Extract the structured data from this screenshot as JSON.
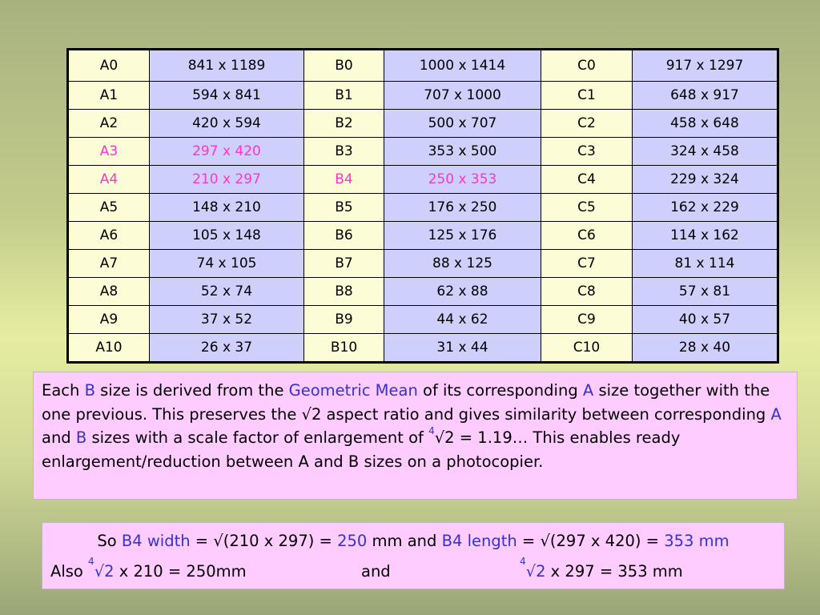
{
  "table": {
    "rows": [
      [
        "A0",
        "841 x 1189",
        "B0",
        "1000 x 1414",
        "C0",
        "917 x 1297"
      ],
      [
        "A1",
        "594 x 841",
        "B1",
        "707 x 1000",
        "C1",
        "648 x 917"
      ],
      [
        "A2",
        "420 x 594",
        "B2",
        "500 x 707",
        "C2",
        "458 x 648"
      ],
      [
        "A3",
        "297 x 420",
        "B3",
        "353 x 500",
        "C3",
        "324 x 458"
      ],
      [
        "A4",
        "210 x 297",
        "B4",
        "250 x 353",
        "C4",
        "229 x 324"
      ],
      [
        "A5",
        "148 x 210",
        "B5",
        "176 x 250",
        "C5",
        "162 x 229"
      ],
      [
        "A6",
        "105 x 148",
        "B6",
        "125 x 176",
        "C6",
        "114 x 162"
      ],
      [
        "A7",
        "74 x 105",
        "B7",
        "88 x 125",
        "C7",
        "81 x 114"
      ],
      [
        "A8",
        "52 x 74",
        "B8",
        "62 x 88",
        "C8",
        "57 x 81"
      ],
      [
        "A9",
        "37 x 52",
        "B9",
        "44 x 62",
        "C9",
        "40 x 57"
      ],
      [
        "A10",
        "26 x 37",
        "B10",
        "31 x 44",
        "C10",
        "28 x 40"
      ]
    ],
    "highlighted_cells": [
      [
        3,
        0
      ],
      [
        3,
        1
      ],
      [
        4,
        0
      ],
      [
        4,
        1
      ],
      [
        4,
        2
      ],
      [
        4,
        3
      ]
    ],
    "highlight_color": "#ff33cc",
    "label_bg": "#fcfcd6",
    "value_bg": "#cfcffc"
  },
  "explanation": {
    "t1": "Each ",
    "b1": "B",
    "t2": " size is derived from the ",
    "b2": "Geometric Mean",
    "t3": " of its corresponding ",
    "b3": "A",
    "t4": " size together with the one previous. This preserves the √2 aspect ratio and  gives similarity between corresponding  ",
    "b4": "A",
    "t5": " and ",
    "b5": "B",
    "t6": " sizes with a scale factor of enlargement of ",
    "sup1": "4",
    "t7": "√2 = 1.19… This enables ready  enlargement/reduction between A and B sizes on a photocopier."
  },
  "calc": {
    "l1_t1": "So ",
    "l1_b1": "B4 width",
    "l1_t2": " = √(210 x 297) = ",
    "l1_b2": "250",
    "l1_t3": " mm and ",
    "l1_b3": "B4 length",
    "l1_t4": " = √(297 x 420) = ",
    "l1_b4": "353 mm",
    "l2_t1": "Also  ",
    "l2_sup1": "4",
    "l2_b1": "√2",
    "l2_t2": " x 210 = 250mm",
    "l2_t3": "and",
    "l2_sup2": "4",
    "l2_b2": "√2",
    "l2_t4": " x 297 = 353 mm"
  },
  "colors": {
    "blue_text": "#3333cc",
    "box_bg": "#ffccff"
  }
}
